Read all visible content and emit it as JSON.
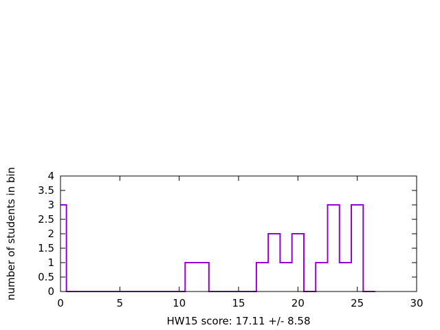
{
  "chart_data": {
    "type": "histogram",
    "title": "",
    "xlabel": "HW15 score: 17.11 +/- 8.58",
    "ylabel": "number of students in bin",
    "xlim": [
      0,
      30
    ],
    "ylim": [
      0,
      4
    ],
    "x_ticks": [
      0,
      5,
      10,
      15,
      20,
      25,
      30
    ],
    "y_ticks": [
      0,
      0.5,
      1,
      1.5,
      2,
      2.5,
      3,
      3.5,
      4
    ],
    "x_tick_labels": [
      "0",
      "5",
      "10",
      "15",
      "20",
      "25",
      "30"
    ],
    "y_tick_labels": [
      "0",
      "0.5",
      "1",
      "1.5",
      "2",
      "2.5",
      "3",
      "3.5",
      "4"
    ],
    "grid": false,
    "series_color": "#9400d3",
    "bins": {
      "x": [
        0,
        1,
        2,
        3,
        4,
        5,
        6,
        7,
        8,
        9,
        10,
        11,
        12,
        13,
        14,
        15,
        16,
        17,
        18,
        19,
        20,
        21,
        22,
        23,
        24,
        25,
        26
      ],
      "values": [
        3,
        0,
        0,
        0,
        0,
        0,
        0,
        0,
        0,
        0,
        0,
        1,
        1,
        0,
        0,
        0,
        0,
        1,
        2,
        1,
        2,
        0,
        1,
        3,
        1,
        3,
        0
      ]
    }
  }
}
